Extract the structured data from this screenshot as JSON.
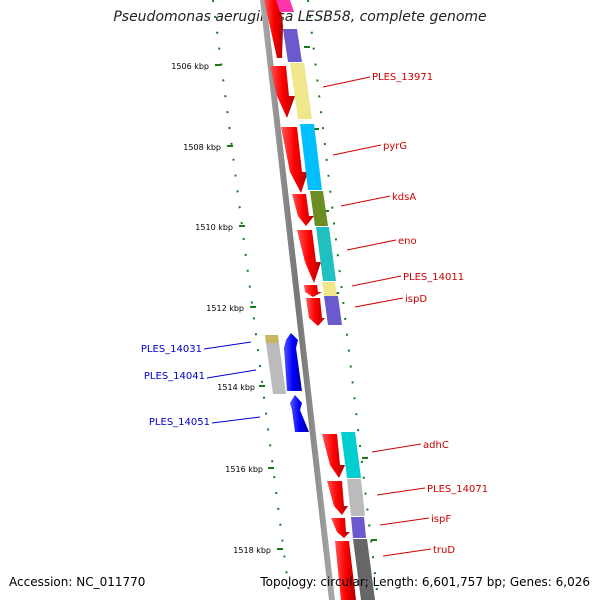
{
  "title": "Pseudomonas aeruginosa LESB58, complete genome",
  "accession": "Accession: NC_011770",
  "summary": "Topology: circular; Length: 6,601,757 bp; Genes: 6,026",
  "colors": {
    "strand_forward_gene": "#ff0000",
    "strand_reverse_gene": "#0000ff",
    "forward_label": "#cc0000",
    "reverse_label": "#0000cc",
    "tick": "#1a7a1a",
    "backbone": "#888888"
  },
  "kbp_ticks": [
    "1506 kbp",
    "1508 kbp",
    "1510 kbp",
    "1512 kbp",
    "1514 kbp",
    "1516 kbp",
    "1518 kbp"
  ],
  "forward_genes": [
    "PLES_13971",
    "pyrG",
    "kdsA",
    "eno",
    "PLES_14011",
    "ispD",
    "adhC",
    "PLES_14071",
    "ispF",
    "truD"
  ],
  "reverse_genes": [
    "PLES_14031",
    "PLES_14041",
    "PLES_14051"
  ]
}
